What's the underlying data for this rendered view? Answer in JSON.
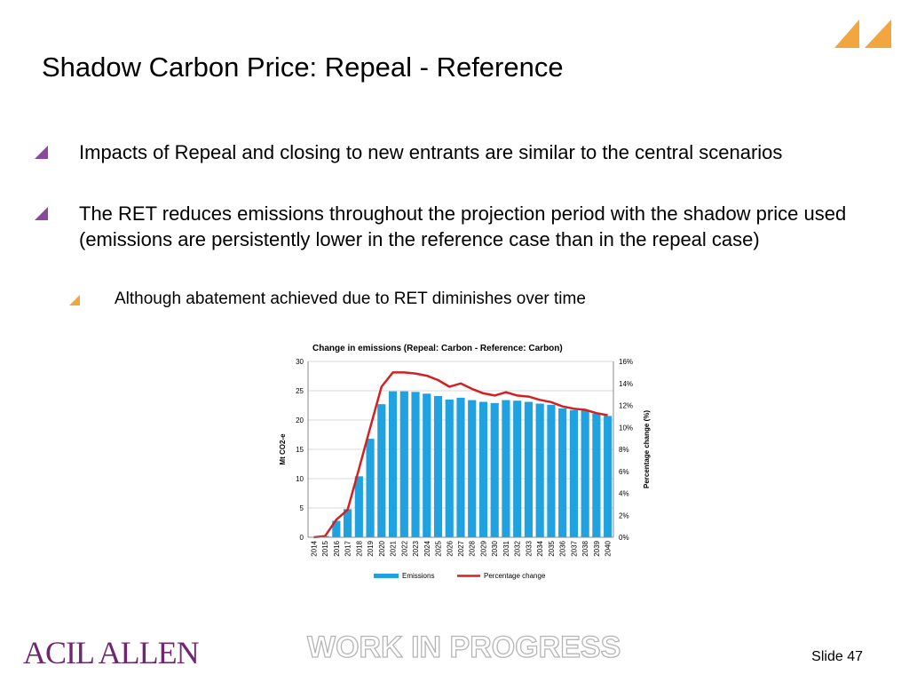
{
  "slide": {
    "title": "Shadow Carbon Price: Repeal - Reference",
    "bullets": [
      {
        "level": 1,
        "text": "Impacts of Repeal and closing to new entrants are similar to the central scenarios"
      },
      {
        "level": 1,
        "text": "The RET reduces emissions throughout the projection period with the shadow price used (emissions are persistently lower in the reference case than in the repeal case)"
      },
      {
        "level": 2,
        "text": "Although abatement achieved due to RET diminishes over time"
      }
    ],
    "company_logo": "ACIL ALLEN",
    "watermark": "WORK IN PROGRESS",
    "slide_number": "Slide 47"
  },
  "colors": {
    "bullet_purple": "#8a4a9c",
    "bullet_orange": "#f2a640",
    "logo_orange": "#f2a640",
    "bar_blue": "#1fa2df",
    "line_red": "#d42020",
    "logo_text": "#6e2770"
  },
  "chart_data": {
    "type": "bar",
    "title": "Change in emissions (Repeal: Carbon - Reference: Carbon)",
    "categories": [
      "2014",
      "2015",
      "2016",
      "2017",
      "2018",
      "2019",
      "2020",
      "2021",
      "2022",
      "2023",
      "2024",
      "2025",
      "2026",
      "2027",
      "2028",
      "2029",
      "2030",
      "2031",
      "2032",
      "2033",
      "2034",
      "2035",
      "2036",
      "2037",
      "2038",
      "2039",
      "2040"
    ],
    "ylabel": "Mt CO2-e",
    "y2label": "Percentage change (%)",
    "ylim": [
      0,
      30
    ],
    "y2lim": [
      0,
      16
    ],
    "yticks": [
      "0",
      "5",
      "10",
      "15",
      "20",
      "25",
      "30"
    ],
    "y2ticks": [
      "0%",
      "2%",
      "4%",
      "6%",
      "8%",
      "10%",
      "12%",
      "14%",
      "16%"
    ],
    "series": [
      {
        "name": "Emissions",
        "type": "bar",
        "axis": "left",
        "values": [
          0,
          0.2,
          2.8,
          4.8,
          10.4,
          16.8,
          22.7,
          24.9,
          24.9,
          24.8,
          24.5,
          24.1,
          23.5,
          23.8,
          23.4,
          23.1,
          22.9,
          23.4,
          23.3,
          23.1,
          22.8,
          22.6,
          22.0,
          21.7,
          21.6,
          21.1,
          20.7
        ]
      },
      {
        "name": "Percentage change",
        "type": "line",
        "axis": "right",
        "values": [
          0,
          0.1,
          1.6,
          2.5,
          6.2,
          10.0,
          13.7,
          15.0,
          15.0,
          14.9,
          14.7,
          14.3,
          13.7,
          14.0,
          13.5,
          13.1,
          12.9,
          13.2,
          12.9,
          12.8,
          12.5,
          12.3,
          11.9,
          11.7,
          11.6,
          11.3,
          11.1
        ]
      }
    ],
    "legend": "bottom"
  }
}
